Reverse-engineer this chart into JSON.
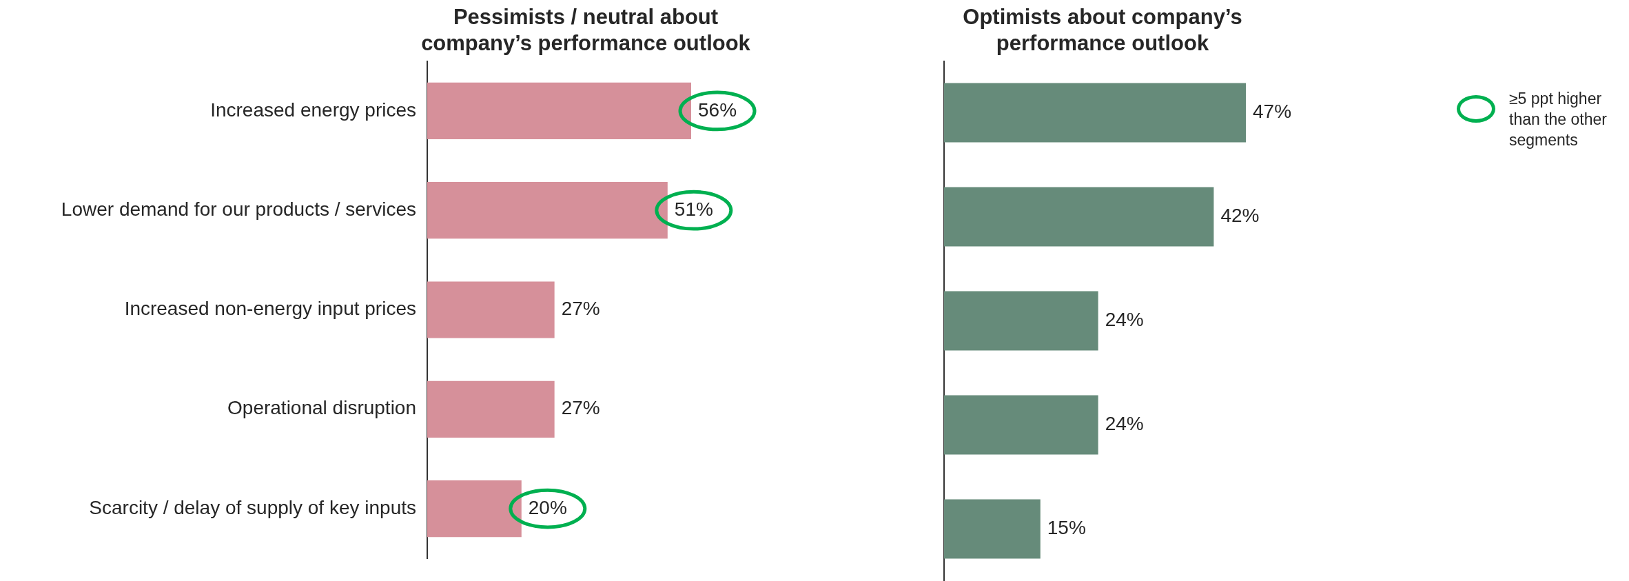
{
  "chart_data": [
    {
      "type": "bar",
      "orientation": "horizontal",
      "title": "Pessimists / neutral about company’s performance outlook",
      "categories": [
        "Increased energy prices",
        "Lower demand for our products / services",
        "Increased non-energy input prices",
        "Operational disruption",
        "Scarcity / delay of supply of key inputs"
      ],
      "values": [
        56,
        51,
        27,
        27,
        20
      ],
      "color": "#d6909a",
      "value_labels": [
        null,
        null,
        "27%",
        "27%",
        null
      ],
      "annotations": [
        {
          "text": "56%",
          "x": 56,
          "y": "Increased energy prices"
        },
        {
          "text": "51%",
          "x": 51,
          "y": "Lower demand for our products / services"
        },
        {
          "text": "20%",
          "x": 20,
          "y": "Scarcity / delay of supply of key inputs"
        }
      ],
      "tick_labels": "y",
      "grid": false,
      "legend": false
    },
    {
      "type": "bar",
      "orientation": "horizontal",
      "title": "Optimists about company’s performance outlook",
      "categories": [
        null,
        null,
        null,
        null,
        null
      ],
      "values": [
        47,
        42,
        24,
        24,
        15
      ],
      "color": "#668b7a",
      "value_labels": [
        "47%",
        "42%",
        "24%",
        "24%",
        "15%"
      ],
      "annotations": [
        "≥5 ppt higher than the other segments"
      ],
      "tick_labels": false,
      "grid": false,
      "legend": false
    }
  ]
}
